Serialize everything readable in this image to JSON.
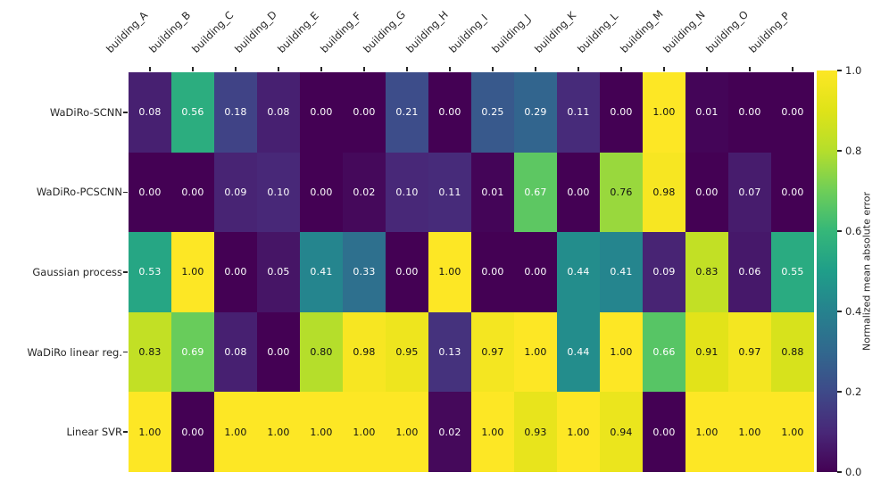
{
  "chart_data": {
    "type": "heatmap",
    "title": "",
    "xlabel": "",
    "ylabel": "",
    "categories": [
      "building_A",
      "building_B",
      "building_C",
      "building_D",
      "building_E",
      "building_F",
      "building_G",
      "building_H",
      "building_I",
      "building_J",
      "building_K",
      "building_L",
      "building_M",
      "building_N",
      "building_O",
      "building_P"
    ],
    "series": [
      {
        "name": "WaDiRo-SCNN",
        "values": [
          0.08,
          0.56,
          0.18,
          0.08,
          0.0,
          0.0,
          0.21,
          0.0,
          0.25,
          0.29,
          0.11,
          0.0,
          1.0,
          0.01,
          0.0,
          0.0
        ]
      },
      {
        "name": "WaDiRo-PCSCNN",
        "values": [
          0.0,
          0.0,
          0.09,
          0.1,
          0.0,
          0.02,
          0.1,
          0.11,
          0.01,
          0.67,
          0.0,
          0.76,
          0.98,
          0.0,
          0.07,
          0.0
        ]
      },
      {
        "name": "Gaussian process",
        "values": [
          0.53,
          1.0,
          0.0,
          0.05,
          0.41,
          0.33,
          0.0,
          1.0,
          0.0,
          0.0,
          0.44,
          0.41,
          0.09,
          0.83,
          0.06,
          0.55
        ]
      },
      {
        "name": "WaDiRo linear reg.",
        "values": [
          0.83,
          0.69,
          0.08,
          0.0,
          0.8,
          0.98,
          0.95,
          0.13,
          0.97,
          1.0,
          0.44,
          1.0,
          0.66,
          0.91,
          0.97,
          0.88
        ]
      },
      {
        "name": "Linear SVR",
        "values": [
          1.0,
          0.0,
          1.0,
          1.0,
          1.0,
          1.0,
          1.0,
          0.02,
          1.0,
          0.93,
          1.0,
          0.94,
          0.0,
          1.0,
          1.0,
          1.0
        ]
      }
    ],
    "value_range": [
      0.0,
      1.0
    ],
    "annotation_decimals": 2,
    "grid": false,
    "colormap": "viridis",
    "colorbar": {
      "label": "Normalized mean absolute error",
      "ticks": [
        "0.0",
        "0.2",
        "0.4",
        "0.6",
        "0.8",
        "1.0"
      ],
      "position": "right"
    }
  },
  "style": {
    "colormap_anchors": [
      [
        0.0,
        "#440154"
      ],
      [
        0.1,
        "#482878"
      ],
      [
        0.2,
        "#3e4a89"
      ],
      [
        0.3,
        "#31688e"
      ],
      [
        0.4,
        "#26828e"
      ],
      [
        0.5,
        "#1f9e89"
      ],
      [
        0.6,
        "#35b779"
      ],
      [
        0.7,
        "#6ece58"
      ],
      [
        0.8,
        "#b5de2b"
      ],
      [
        0.9,
        "#dfe318"
      ],
      [
        1.0,
        "#fde725"
      ]
    ],
    "dark_text_threshold": 0.7,
    "annotation_text_light": "#ffffff",
    "annotation_text_dark": "#111111",
    "axis_text_color": "#262626"
  }
}
